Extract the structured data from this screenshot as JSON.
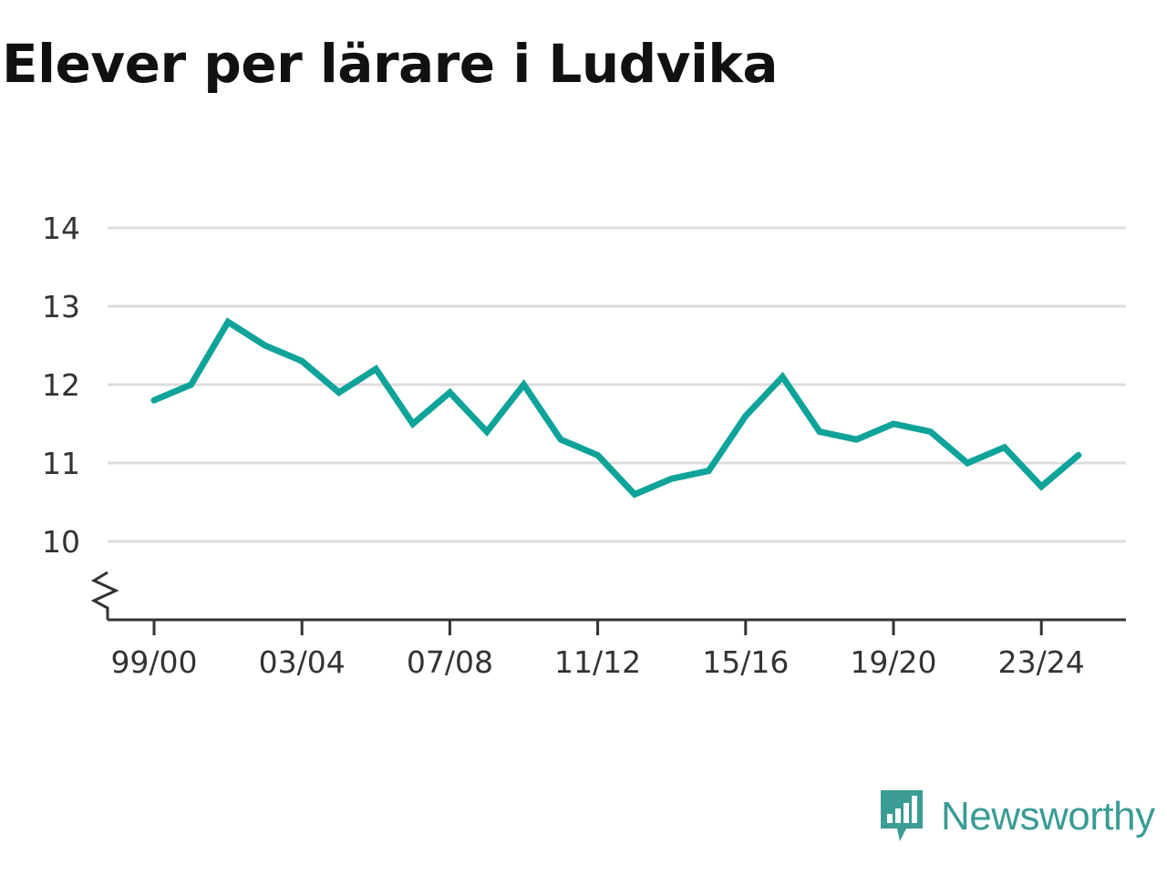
{
  "title": "Elever per lärare i Ludvika",
  "brand": {
    "name": "Newsworthy",
    "logo_icon": "newsworthy-logo-icon",
    "color": "#3a9c94"
  },
  "colors": {
    "line": "#0fa39a",
    "grid": "#dddddd",
    "axis": "#333333",
    "text": "#333333"
  },
  "chart_data": {
    "type": "line",
    "title": "Elever per lärare i Ludvika",
    "xlabel": "",
    "ylabel": "",
    "ylim": [
      9,
      14
    ],
    "y_axis_break": true,
    "grid": true,
    "yticks": [
      10,
      11,
      12,
      13,
      14
    ],
    "x_tick_labels": [
      "99/00",
      "03/04",
      "07/08",
      "11/12",
      "15/16",
      "19/20",
      "23/24"
    ],
    "x": [
      "99/00",
      "00/01",
      "01/02",
      "02/03",
      "03/04",
      "04/05",
      "05/06",
      "06/07",
      "07/08",
      "08/09",
      "09/10",
      "10/11",
      "11/12",
      "12/13",
      "13/14",
      "14/15",
      "15/16",
      "16/17",
      "17/18",
      "18/19",
      "19/20",
      "20/21",
      "21/22",
      "22/23",
      "23/24",
      "24/25"
    ],
    "series": [
      {
        "values": [
          11.8,
          12.0,
          12.8,
          12.5,
          12.3,
          11.9,
          12.2,
          11.5,
          11.9,
          11.4,
          12.0,
          11.3,
          11.1,
          10.6,
          10.8,
          10.9,
          11.6,
          12.1,
          11.4,
          11.3,
          11.5,
          11.4,
          11.0,
          11.2,
          10.7,
          11.1
        ]
      }
    ]
  }
}
